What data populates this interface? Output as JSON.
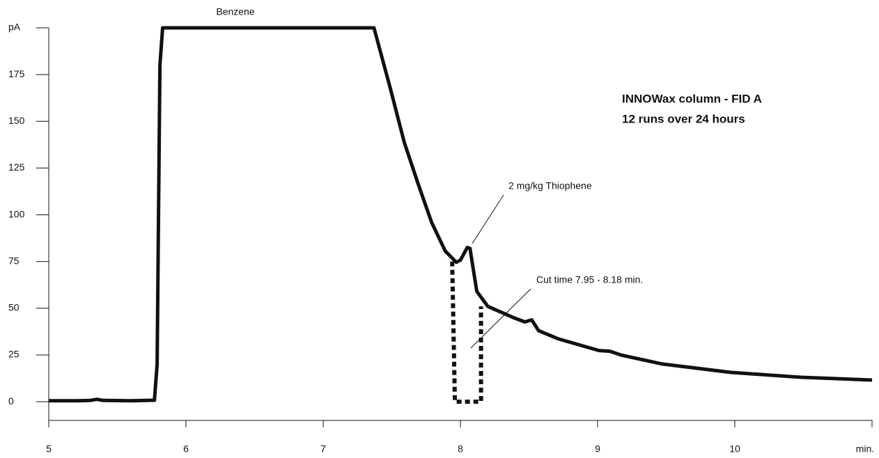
{
  "chart_data": {
    "type": "line",
    "xlim": [
      5,
      11
    ],
    "ylim": [
      -10,
      200
    ],
    "xticks": [
      5,
      6,
      7,
      8,
      9,
      10,
      {
        "value": 11,
        "label": "min."
      }
    ],
    "yticks": [
      0,
      25,
      50,
      75,
      100,
      125,
      150,
      175,
      {
        "value": 200,
        "label": "pA"
      }
    ],
    "grid": false,
    "annotations": [
      "Benzene",
      "2 mg/kg Thiophene",
      "Cut time 7.95 - 8.18 min.",
      "INNOWax column - FID A",
      "12 runs over 24 hours"
    ],
    "series": [
      {
        "color": "#111111",
        "style": "solid",
        "x": [
          5.0,
          5.2,
          5.3,
          5.35,
          5.4,
          5.6,
          5.77,
          5.79,
          5.81,
          5.83,
          7.37,
          7.49,
          7.59,
          7.69,
          7.79,
          7.89,
          7.97,
          8.0,
          8.05,
          8.07,
          8.1,
          8.12,
          8.2,
          8.4,
          8.47,
          8.52,
          8.57,
          8.71,
          9.01,
          9.09,
          9.17,
          9.47,
          9.97,
          10.48,
          11.0
        ],
        "values": [
          0.5,
          0.5,
          0.7,
          1.3,
          0.7,
          0.5,
          0.8,
          20,
          180,
          200,
          200,
          167.5,
          139,
          117,
          96,
          80.6,
          74.6,
          75.7,
          82.5,
          82,
          68,
          59,
          51,
          44.6,
          42.7,
          43.8,
          38,
          33.7,
          27.4,
          27,
          25,
          20.2,
          15.7,
          13.1,
          11.6
        ]
      },
      {
        "color": "#111111",
        "style": "dotted",
        "x": [
          7.94,
          7.96,
          8.15,
          8.15
        ],
        "values": [
          75,
          0,
          0,
          51
        ]
      }
    ]
  }
}
